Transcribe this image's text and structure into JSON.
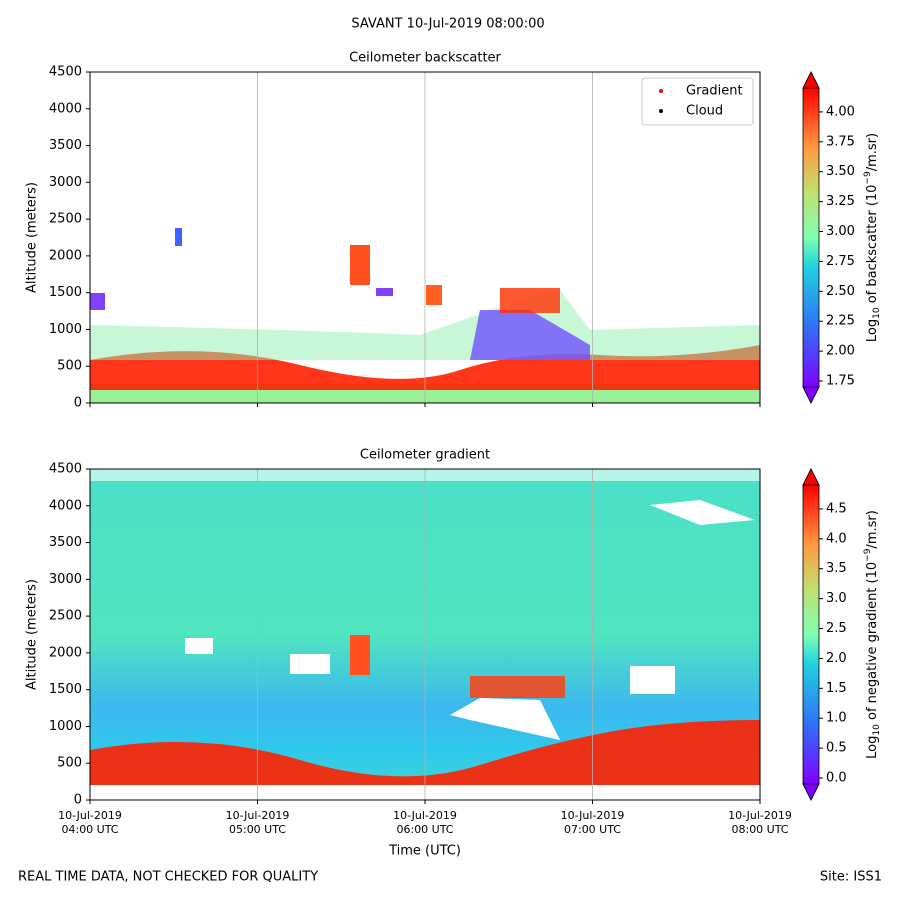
{
  "title": "SAVANT 10-Jul-2019 08:00:00",
  "footer_left": "REAL TIME DATA, NOT CHECKED FOR QUALITY",
  "footer_right": "Site: ISS1",
  "chart_data": [
    {
      "type": "heatmap",
      "title": "Ceilometer backscatter",
      "ylabel": "Altitude (meters)",
      "ylim": [
        0,
        4500
      ],
      "yticks": [
        0,
        500,
        1000,
        1500,
        2000,
        2500,
        3000,
        3500,
        4000,
        4500
      ],
      "grid": true,
      "colorbar_label": [
        "Log",
        "10",
        " of backscatter (10",
        "−9",
        "/m.sr)"
      ],
      "clim": [
        1.7,
        4.2
      ],
      "cticks": [
        {
          "value": 1.75,
          "label": "1.75"
        },
        {
          "value": 2,
          "label": "2.00"
        },
        {
          "value": 2.25,
          "label": "2.25"
        },
        {
          "value": 2.5,
          "label": "2.50"
        },
        {
          "value": 2.75,
          "label": "2.75"
        },
        {
          "value": 3,
          "label": "3.00"
        },
        {
          "value": 3.25,
          "label": "3.25"
        },
        {
          "value": 3.5,
          "label": "3.50"
        },
        {
          "value": 3.75,
          "label": "3.75"
        },
        {
          "value": 4,
          "label": "4.00"
        }
      ],
      "legend": "upper right",
      "series": [
        {
          "name": "Gradient",
          "color": "#ff0000"
        },
        {
          "name": "Cloud",
          "color": "#000000"
        }
      ]
    },
    {
      "type": "heatmap",
      "title": "Ceilometer gradient",
      "ylabel": "Altitude (meters)",
      "xlabel": "Time (UTC)",
      "xlim": [
        4,
        8
      ],
      "xticks": [
        {
          "value": 4,
          "label": "10-Jul-2019\n04:00 UTC"
        },
        {
          "value": 5,
          "label": "10-Jul-2019\n05:00 UTC"
        },
        {
          "value": 6,
          "label": "10-Jul-2019\n06:00 UTC"
        },
        {
          "value": 7,
          "label": "10-Jul-2019\n07:00 UTC"
        },
        {
          "value": 8,
          "label": "10-Jul-2019\n08:00 UTC"
        }
      ],
      "ylim": [
        0,
        4500
      ],
      "yticks": [
        0,
        500,
        1000,
        1500,
        2000,
        2500,
        3000,
        3500,
        4000,
        4500
      ],
      "grid": true,
      "colorbar_label": [
        "Log",
        "10",
        " of negative gradient (10",
        "−9",
        "/m.sr)"
      ],
      "clim": [
        -0.1,
        4.9
      ],
      "cticks": [
        {
          "value": 0,
          "label": "0.0"
        },
        {
          "value": 0.5,
          "label": "0.5"
        },
        {
          "value": 1,
          "label": "1.0"
        },
        {
          "value": 1.5,
          "label": "1.5"
        },
        {
          "value": 2,
          "label": "2.0"
        },
        {
          "value": 2.5,
          "label": "2.5"
        },
        {
          "value": 3,
          "label": "3.0"
        },
        {
          "value": 3.5,
          "label": "3.5"
        },
        {
          "value": 4,
          "label": "4.0"
        },
        {
          "value": 4.5,
          "label": "4.5"
        }
      ]
    }
  ]
}
